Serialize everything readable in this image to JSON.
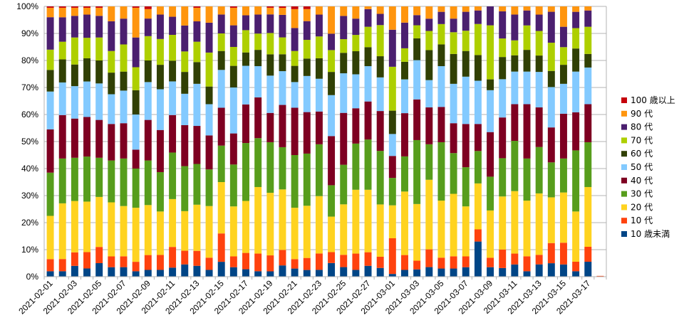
{
  "chart_data": {
    "type": "bar",
    "stacked": "percent",
    "ylim": [
      0,
      100
    ],
    "yticks": [
      "0%",
      "10%",
      "20%",
      "30%",
      "40%",
      "50%",
      "60%",
      "70%",
      "80%",
      "90%",
      "100%"
    ],
    "grid": true,
    "legend_position": "right",
    "categories": [
      "2021-02-01",
      "2021-02-02",
      "2021-02-03",
      "2021-02-04",
      "2021-02-05",
      "2021-02-06",
      "2021-02-07",
      "2021-02-08",
      "2021-02-09",
      "2021-02-10",
      "2021-02-11",
      "2021-02-12",
      "2021-02-13",
      "2021-02-14",
      "2021-02-15",
      "2021-02-16",
      "2021-02-17",
      "2021-02-18",
      "2021-02-19",
      "2021-02-20",
      "2021-02-21",
      "2021-02-22",
      "2021-02-23",
      "2021-02-24",
      "2021-02-25",
      "2021-02-26",
      "2021-02-27",
      "2021-02-28",
      "2021-03-01",
      "2021-03-02",
      "2021-03-03",
      "2021-03-04",
      "2021-03-05",
      "2021-03-06",
      "2021-03-07",
      "2021-03-08",
      "2021-03-09",
      "2021-03-10",
      "2021-03-11",
      "2021-03-12",
      "2021-03-13",
      "2021-03-14",
      "2021-03-15",
      "2021-03-16",
      "2021-03-17",
      "2021-03-18"
    ],
    "xtick_labels": [
      "2021-02-01",
      "2021-02-03",
      "2021-02-05",
      "2021-02-07",
      "2021-02-09",
      "2021-02-11",
      "2021-02-13",
      "2021-02-15",
      "2021-02-17",
      "2021-02-19",
      "2021-02-21",
      "2021-02-23",
      "2021-02-25",
      "2021-02-27",
      "2021-03-01",
      "2021-03-03",
      "2021-03-05",
      "2021-03-07",
      "2021-03-09",
      "2021-03-11",
      "2021-03-13",
      "2021-03-15",
      "2021-03-17"
    ],
    "series": [
      {
        "name": "10 歳未満",
        "color": "#004586",
        "values": [
          2,
          2,
          4,
          3,
          5,
          3.5,
          3.5,
          2,
          2.5,
          2.5,
          3.5,
          4.5,
          4,
          2.5,
          5.5,
          3.5,
          2.5,
          2,
          2,
          4,
          3,
          2.5,
          2.5,
          5,
          3.5,
          2.5,
          4,
          3.5,
          1,
          2.5,
          2.5,
          3.5,
          3,
          3,
          3.5,
          13,
          3.5,
          3.5,
          4.5,
          2,
          4.5,
          5,
          4.5,
          2,
          5.5,
          0.1
        ]
      },
      {
        "name": "10 代",
        "color": "#ff420e",
        "values": [
          4.5,
          4.5,
          5,
          6,
          6,
          4,
          4,
          3.5,
          5.5,
          5.5,
          8,
          5,
          5.5,
          4.5,
          10.5,
          4,
          5.5,
          6.5,
          6,
          5.5,
          3.5,
          4.5,
          6,
          4,
          4.5,
          6,
          5,
          4.5,
          13,
          5.5,
          3,
          6.5,
          4,
          4.5,
          4,
          4.5,
          3.5,
          7.5,
          4,
          5.5,
          3.5,
          7.5,
          8,
          3.5,
          5.5,
          0.2
        ]
      },
      {
        "name": "20 代",
        "color": "#ffd320",
        "values": [
          16,
          20.5,
          19,
          18.5,
          18.5,
          20,
          18.5,
          20,
          18.5,
          16,
          18.5,
          14.5,
          17,
          19,
          19,
          18.5,
          17.5,
          24.5,
          23.5,
          21.5,
          19,
          19.5,
          21,
          13,
          18.5,
          23.5,
          23,
          21,
          12,
          23.5,
          19.5,
          25.5,
          21,
          23,
          18.5,
          17,
          17.5,
          21.5,
          23,
          20.5,
          22.5,
          17,
          18.5,
          18.5,
          22,
          0
        ]
      },
      {
        "name": "30 代",
        "color": "#579d1c",
        "values": [
          16,
          16.5,
          16,
          16.5,
          14.5,
          15.5,
          17.5,
          14.5,
          16.5,
          14.5,
          18,
          16.5,
          15,
          13.5,
          13.5,
          15.5,
          19.5,
          18,
          19,
          15,
          19.5,
          19.5,
          19,
          11.5,
          14.5,
          17,
          18.5,
          21.5,
          10,
          13,
          22,
          13,
          21.5,
          15,
          14.5,
          12,
          12.5,
          15.5,
          18.5,
          15.5,
          17,
          13,
          12.5,
          22.5,
          16.5,
          0
        ]
      },
      {
        "name": "40 代",
        "color": "#7e0021",
        "values": [
          16,
          16,
          14.5,
          14.5,
          14,
          13.5,
          13,
          7,
          15,
          15.5,
          14.5,
          15,
          14,
          12.5,
          14,
          11.5,
          13,
          15,
          11,
          15,
          17.5,
          15.5,
          12,
          18,
          19,
          13,
          14,
          16,
          8,
          16,
          14,
          13.5,
          13,
          11,
          16,
          10,
          16.5,
          16.5,
          13.5,
          20,
          14.5,
          13,
          16.5,
          14,
          14,
          0
        ]
      },
      {
        "name": "50 代",
        "color": "#83caff",
        "values": [
          14,
          12,
          12,
          13,
          13.5,
          11,
          12,
          13,
          14,
          15,
          13,
          11.5,
          15.5,
          11.5,
          14,
          17,
          13,
          11.5,
          14,
          12,
          9.5,
          13.5,
          12,
          15,
          14.5,
          12.5,
          13,
          13.5,
          8,
          12.5,
          13.5,
          10,
          15,
          14.5,
          17.5,
          16,
          15.5,
          15.5,
          12,
          12,
          13,
          15,
          11,
          15,
          13.5,
          0
        ]
      },
      {
        "name": "60 代",
        "color": "#314004",
        "values": [
          8,
          8.5,
          8,
          8.5,
          8.5,
          8,
          7,
          9,
          8,
          9,
          8,
          8,
          8,
          6.5,
          7,
          8,
          4.5,
          6,
          8,
          6,
          6,
          6.5,
          7.5,
          8.5,
          7.5,
          8.5,
          7,
          8.5,
          8.5,
          6.5,
          7.5,
          11,
          8,
          11,
          9.5,
          9.5,
          4,
          9,
          6,
          8,
          6,
          6,
          7,
          8.5,
          5,
          0
        ]
      },
      {
        "name": "70 代",
        "color": "#aecf00",
        "values": [
          7.5,
          6.5,
          10,
          7.5,
          8.5,
          8,
          10,
          8.5,
          9,
          9.5,
          10,
          7.5,
          7.5,
          12.5,
          6.5,
          7,
          7.5,
          6,
          8,
          6,
          5.5,
          7,
          8,
          8,
          5,
          6,
          7.5,
          12.5,
          16,
          5,
          4.5,
          7,
          7.5,
          8,
          7.5,
          11.5,
          20,
          7.5,
          5.5,
          9,
          9,
          10.5,
          6.5,
          7.5,
          10,
          0
        ]
      },
      {
        "name": "80 代",
        "color": "#4b1f6f",
        "values": [
          12,
          9,
          8,
          8.5,
          8,
          11,
          9.5,
          11,
          6.5,
          9,
          7,
          9.5,
          7.5,
          11,
          7,
          8,
          5,
          7,
          7,
          8,
          8.5,
          7,
          8,
          6,
          8.5,
          6,
          6.5,
          4.5,
          13.5,
          9.5,
          3.5,
          4.5,
          4.5,
          5,
          7,
          5,
          7,
          11,
          9.5,
          5.5,
          6,
          11.5,
          7.5,
          6,
          6,
          0
        ]
      },
      {
        "name": "90 代",
        "color": "#ff950e",
        "values": [
          3.5,
          3.5,
          3,
          2.5,
          3,
          5.5,
          4.5,
          11,
          3.5,
          3,
          4,
          7,
          5,
          6,
          3,
          6.5,
          3,
          3,
          2.5,
          2.5,
          7,
          4.5,
          3,
          10,
          3.5,
          4.5,
          1,
          3,
          8.5,
          6,
          3,
          4.5,
          2,
          4.5,
          2,
          1.5,
          0,
          2,
          3,
          1.5,
          3,
          2,
          7.5,
          2,
          1.5,
          0
        ]
      },
      {
        "name": "100 歳以上",
        "color": "#c5000b",
        "values": [
          0.5,
          0.5,
          0.5,
          0.5,
          0.5,
          0,
          0,
          0.5,
          1,
          0,
          0,
          0,
          0.5,
          0,
          0,
          0.5,
          0,
          0,
          0.5,
          0.5,
          1,
          1,
          0,
          0,
          0,
          0,
          0,
          0,
          0,
          0,
          0,
          0,
          0,
          0,
          0,
          0,
          0,
          0,
          0,
          0,
          0,
          0,
          0,
          0,
          0,
          0
        ]
      }
    ]
  }
}
